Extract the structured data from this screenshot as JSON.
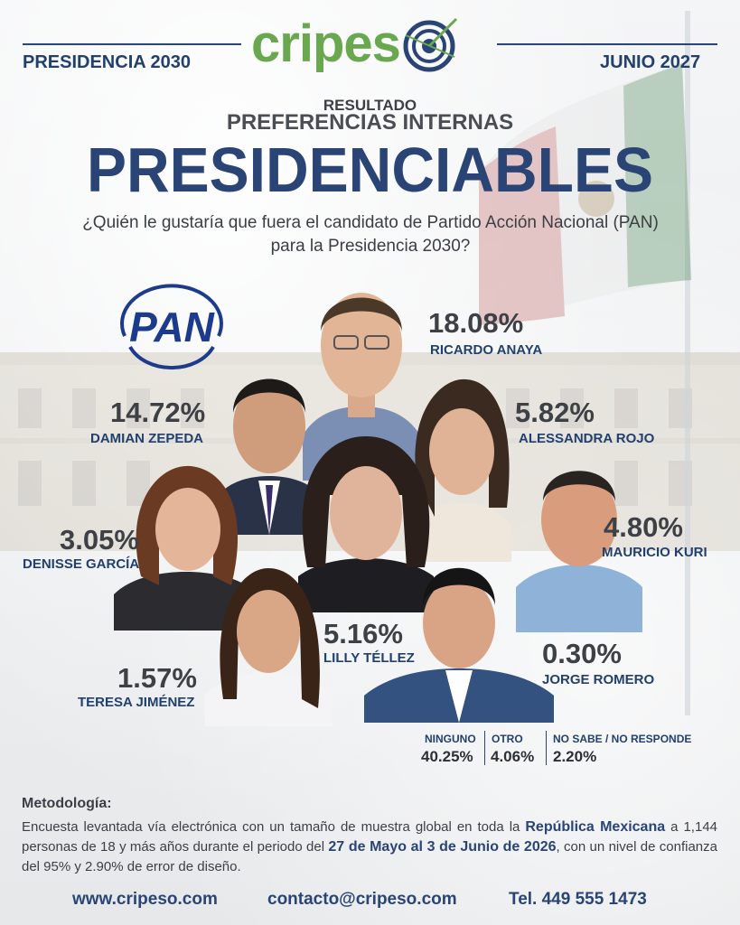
{
  "header": {
    "brand": "cripes",
    "left_label": "PRESIDENCIA 2030",
    "right_label": "JUNIO 2027"
  },
  "titles": {
    "resultado": "RESULTADO",
    "subtitle": "PREFERENCIAS INTERNAS",
    "main": "PRESIDENCIABLES",
    "question_line1": "¿Quién le gustaría que fuera el candidato de Partido Acción Nacional (PAN)",
    "question_line2": "para la Presidencia 2030?"
  },
  "party_logo": "PAN",
  "candidates": [
    {
      "name": "RICARDO ANAYA",
      "pct": "18.08%"
    },
    {
      "name": "DAMIAN ZEPEDA",
      "pct": "14.72%"
    },
    {
      "name": "ALESSANDRA ROJO",
      "pct": "5.82%"
    },
    {
      "name": "DENISSE GARCÍA",
      "pct": "3.05%"
    },
    {
      "name": "MAURICIO KURI",
      "pct": "4.80%"
    },
    {
      "name": "LILLY TÉLLEZ",
      "pct": "5.16%"
    },
    {
      "name": "TERESA JIMÉNEZ",
      "pct": "1.57%"
    },
    {
      "name": "JORGE ROMERO",
      "pct": "0.30%"
    }
  ],
  "others": [
    {
      "label": "NINGUNO",
      "value": "40.25%"
    },
    {
      "label": "OTRO",
      "value": "4.06%"
    },
    {
      "label": "NO SABE / NO RESPONDE",
      "value": "2.20%"
    }
  ],
  "methodology": {
    "title": "Metodología:",
    "part1": "Encuesta levantada vía electrónica con un tamaño de muestra global en toda la ",
    "bold1": "República Mexicana",
    "part2": " a 1,144 personas de 18 y más años durante el periodo del ",
    "bold2": "27 de Mayo al 3 de Junio de 2026",
    "part3": ", con un nivel de confianza del 95% y 2.90% de error de diseño."
  },
  "footer": {
    "website": "www.cripeso.com",
    "email": "contacto@cripeso.com",
    "phone": "Tel. 449 555 1473"
  },
  "colors": {
    "navy": "#2a4575",
    "green": "#6aa84f"
  }
}
